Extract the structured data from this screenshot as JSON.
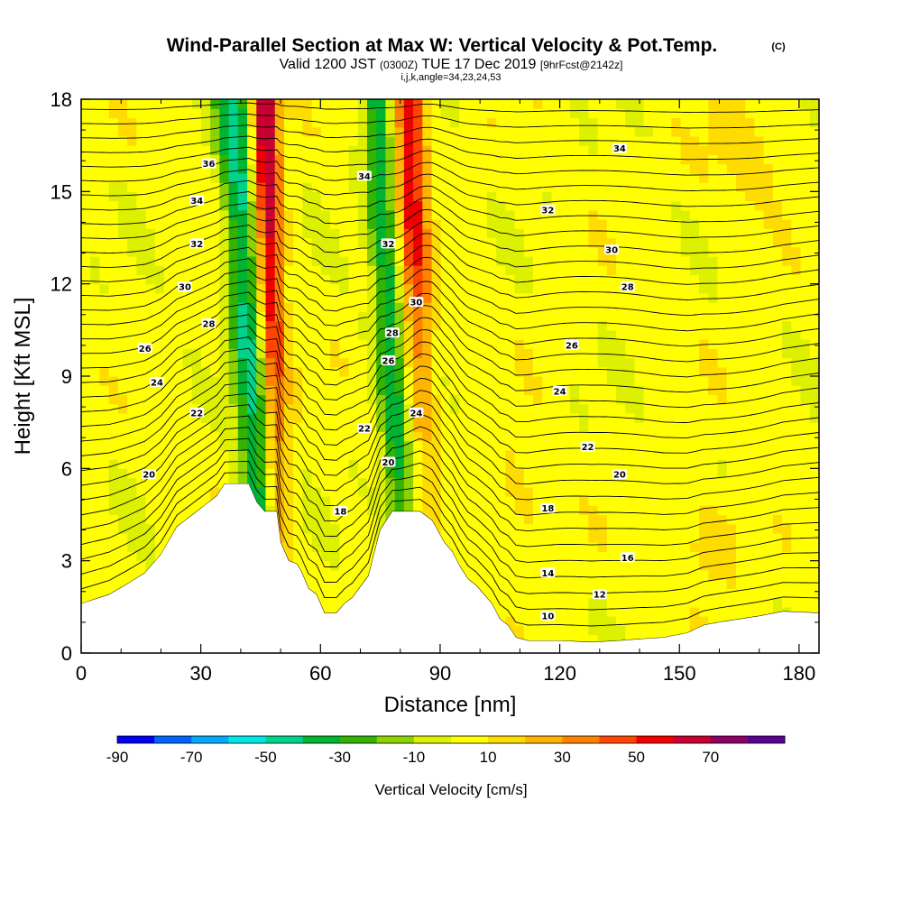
{
  "title": {
    "main": "Wind-Parallel Section at Max W: Vertical Velocity & Pot.Temp.",
    "mark": "(C)",
    "valid_prefix": "Valid 1200 JST",
    "valid_zulu": "(0300Z)",
    "valid_date": "TUE 17 Dec 2019",
    "forecast": "[9hrFcst@2142z]",
    "indices": "i,j,k,angle=34,23,24,53"
  },
  "chart_data": {
    "type": "heatmap",
    "xlabel": "Distance [nm]",
    "ylabel": "Height [Kft MSL]",
    "xlim": [
      0,
      185
    ],
    "ylim": [
      0,
      18
    ],
    "xticks": [
      0,
      30,
      60,
      90,
      120,
      150,
      180
    ],
    "yticks": [
      0,
      3,
      6,
      9,
      12,
      15,
      18
    ],
    "fill": {
      "variable": "Vertical Velocity",
      "units": "cm/s",
      "label": "Vertical Velocity [cm/s]",
      "levels": [
        -90,
        -80,
        -70,
        -60,
        -50,
        -40,
        -30,
        -20,
        -10,
        0,
        10,
        20,
        30,
        40,
        50,
        60,
        70,
        80
      ],
      "level_labels": [
        -90,
        -70,
        -50,
        -30,
        -10,
        10,
        30,
        50,
        70
      ],
      "colors": [
        "#0000f0",
        "#0064ff",
        "#00aaff",
        "#00e6e6",
        "#00d28c",
        "#00b432",
        "#32b400",
        "#8cd200",
        "#dcf000",
        "#ffff00",
        "#ffdc00",
        "#ffb400",
        "#ff8200",
        "#ff4600",
        "#f00000",
        "#c80032",
        "#8c0064",
        "#5a0096"
      ],
      "features": [
        {
          "name": "downdraft-west",
          "x_bottom": 45,
          "x_top": 38,
          "value": -35
        },
        {
          "name": "updraft-west",
          "x_bottom": 50,
          "x_top": 46,
          "value": 65
        },
        {
          "name": "downdraft-east",
          "x_bottom": 84,
          "x_top": 75,
          "value": -30
        },
        {
          "name": "updraft-east",
          "x_bottom": 86,
          "x_top": 82,
          "value": 50
        }
      ]
    },
    "contours": {
      "variable": "Potential Temperature",
      "interval": 1,
      "labels": [
        {
          "value": "36",
          "x": 32,
          "y": 15.9
        },
        {
          "value": "34",
          "x": 29,
          "y": 14.7
        },
        {
          "value": "32",
          "x": 29,
          "y": 13.3
        },
        {
          "value": "30",
          "x": 26,
          "y": 11.9
        },
        {
          "value": "28",
          "x": 32,
          "y": 10.7
        },
        {
          "value": "26",
          "x": 16,
          "y": 9.9
        },
        {
          "value": "24",
          "x": 19,
          "y": 8.8
        },
        {
          "value": "22",
          "x": 29,
          "y": 7.8
        },
        {
          "value": "20",
          "x": 17,
          "y": 5.8
        },
        {
          "value": "34",
          "x": 71,
          "y": 15.5
        },
        {
          "value": "32",
          "x": 77,
          "y": 13.3
        },
        {
          "value": "30",
          "x": 84,
          "y": 11.4
        },
        {
          "value": "28",
          "x": 78,
          "y": 10.4
        },
        {
          "value": "26",
          "x": 77,
          "y": 9.5
        },
        {
          "value": "24",
          "x": 84,
          "y": 7.8
        },
        {
          "value": "22",
          "x": 71,
          "y": 7.3
        },
        {
          "value": "20",
          "x": 77,
          "y": 6.2
        },
        {
          "value": "18",
          "x": 65,
          "y": 4.6
        },
        {
          "value": "34",
          "x": 135,
          "y": 16.4
        },
        {
          "value": "32",
          "x": 117,
          "y": 14.4
        },
        {
          "value": "30",
          "x": 133,
          "y": 13.1
        },
        {
          "value": "28",
          "x": 137,
          "y": 11.9
        },
        {
          "value": "26",
          "x": 123,
          "y": 10.0
        },
        {
          "value": "24",
          "x": 120,
          "y": 8.5
        },
        {
          "value": "22",
          "x": 127,
          "y": 6.7
        },
        {
          "value": "20",
          "x": 135,
          "y": 5.8
        },
        {
          "value": "18",
          "x": 117,
          "y": 4.7
        },
        {
          "value": "16",
          "x": 137,
          "y": 3.1
        },
        {
          "value": "14",
          "x": 117,
          "y": 2.6
        },
        {
          "value": "12",
          "x": 130,
          "y": 1.9
        },
        {
          "value": "10",
          "x": 117,
          "y": 1.2
        }
      ]
    },
    "terrain_kft": [
      [
        0,
        1.6
      ],
      [
        7,
        1.9
      ],
      [
        11,
        2.2
      ],
      [
        16,
        2.6
      ],
      [
        20,
        3.2
      ],
      [
        24,
        4.1
      ],
      [
        29,
        4.6
      ],
      [
        34,
        5.1
      ],
      [
        36,
        5.5
      ],
      [
        42,
        5.5
      ],
      [
        44,
        4.9
      ],
      [
        46,
        4.6
      ],
      [
        49,
        4.6
      ],
      [
        50,
        3.6
      ],
      [
        52,
        3.0
      ],
      [
        54,
        2.9
      ],
      [
        55,
        2.7
      ],
      [
        57,
        2.1
      ],
      [
        59,
        1.9
      ],
      [
        61,
        1.3
      ],
      [
        64,
        1.3
      ],
      [
        66,
        1.6
      ],
      [
        68,
        1.8
      ],
      [
        72,
        2.5
      ],
      [
        75,
        4.0
      ],
      [
        78,
        4.6
      ],
      [
        85,
        4.6
      ],
      [
        88,
        4.3
      ],
      [
        91,
        3.6
      ],
      [
        93,
        3.3
      ],
      [
        95,
        2.8
      ],
      [
        97,
        2.4
      ],
      [
        99,
        2.2
      ],
      [
        101,
        1.9
      ],
      [
        103,
        1.6
      ],
      [
        105,
        1.1
      ],
      [
        107,
        0.9
      ],
      [
        109,
        0.5
      ],
      [
        112,
        0.4
      ],
      [
        120,
        0.4
      ],
      [
        128,
        0.35
      ],
      [
        135,
        0.4
      ],
      [
        140,
        0.45
      ],
      [
        146,
        0.5
      ],
      [
        152,
        0.65
      ],
      [
        156,
        0.9
      ],
      [
        160,
        1.0
      ],
      [
        165,
        1.1
      ],
      [
        170,
        1.2
      ],
      [
        176,
        1.35
      ],
      [
        185,
        1.3
      ]
    ]
  }
}
